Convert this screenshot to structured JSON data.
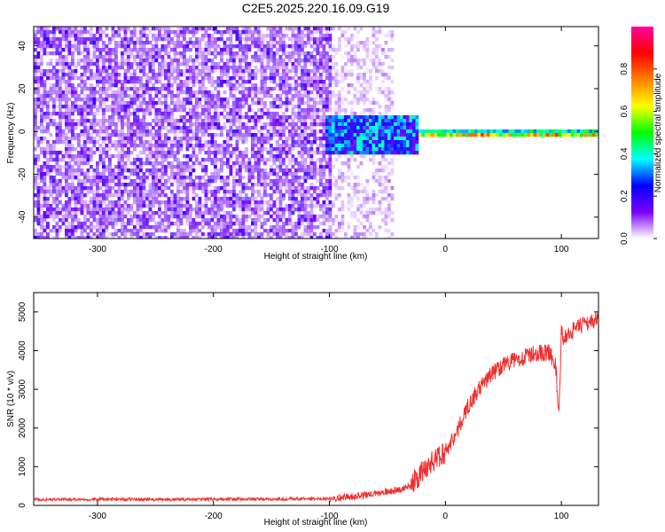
{
  "title": "C2E5.2025.220.16.09.G19",
  "chart_data": [
    {
      "type": "heatmap",
      "xlabel": "Height of straight line (km)",
      "ylabel": "Frequency (Hz)",
      "xlim": [
        -355,
        132
      ],
      "ylim": [
        -50,
        49
      ],
      "xticks": [
        -300,
        -200,
        -100,
        0,
        100
      ],
      "yticks": [
        -40,
        -20,
        0,
        20,
        40
      ],
      "colorbar": {
        "label": "Normalized spectral amplitude",
        "range": [
          0,
          1
        ],
        "ticks": [
          "0.0",
          "0.2",
          "0.4",
          "0.6",
          "0.8"
        ],
        "colormap": [
          "#ffffff",
          "#7a00ff",
          "#0000ff",
          "#00ffff",
          "#00ff00",
          "#ffff00",
          "#ff8000",
          "#ff0000",
          "#ff00a0"
        ]
      },
      "regions": [
        {
          "x": [
            -355,
            -100
          ],
          "freq": [
            -50,
            49
          ],
          "amplitude": 0.18,
          "pattern": "noise"
        },
        {
          "x": [
            -100,
            -45
          ],
          "freq": [
            -50,
            49
          ],
          "amplitude": 0.08,
          "pattern": "sparse-noise"
        },
        {
          "x": [
            -105,
            -25
          ],
          "freq": [
            -10,
            8
          ],
          "amplitude": 0.35,
          "pattern": "signal-burst"
        },
        {
          "x": [
            -25,
            132
          ],
          "freq": [
            -2,
            2
          ],
          "amplitude": 0.55,
          "pattern": "carrier-line"
        }
      ]
    },
    {
      "type": "line",
      "xlabel": "Height of straight line (km)",
      "ylabel": "SNR (10 * v/v)",
      "xlim": [
        -355,
        132
      ],
      "ylim": [
        0,
        5500
      ],
      "xticks": [
        -300,
        -200,
        -100,
        0,
        100
      ],
      "yticks": [
        0,
        1000,
        2000,
        3000,
        4000,
        5000
      ],
      "color": "#f03030",
      "series": [
        {
          "x": [
            -355,
            -300,
            -250,
            -200,
            -150,
            -120,
            -100,
            -80,
            -60,
            -45,
            -35,
            -25,
            -15,
            -5,
            0,
            10,
            20,
            30,
            40,
            50,
            60,
            70,
            80,
            90,
            95,
            98,
            100,
            102,
            108,
            115,
            120,
            125,
            132
          ],
          "values": [
            150,
            160,
            150,
            160,
            160,
            170,
            180,
            230,
            300,
            380,
            450,
            650,
            1050,
            1250,
            1400,
            1900,
            2600,
            3050,
            3400,
            3650,
            3750,
            3850,
            3950,
            3950,
            3600,
            2300,
            4500,
            4300,
            4500,
            4600,
            4700,
            4750,
            4800
          ]
        }
      ]
    }
  ]
}
